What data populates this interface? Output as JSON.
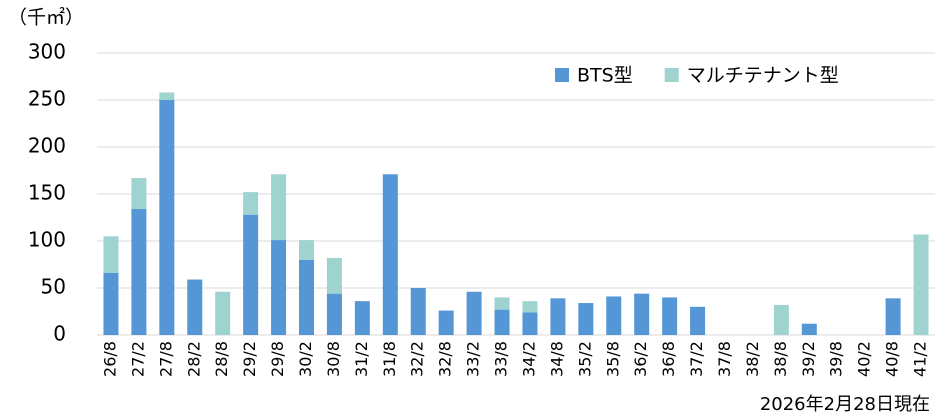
{
  "chart_data": {
    "type": "stacked_bar",
    "unit_label": "（千㎡）",
    "note": "2026年2月28日現在",
    "categories": [
      "26/8",
      "27/2",
      "27/8",
      "28/2",
      "28/8",
      "29/2",
      "29/8",
      "30/2",
      "30/8",
      "31/2",
      "31/8",
      "32/2",
      "32/8",
      "33/2",
      "33/8",
      "34/2",
      "34/8",
      "35/2",
      "35/8",
      "36/2",
      "36/8",
      "37/2",
      "37/8",
      "38/2",
      "38/8",
      "39/2",
      "39/8",
      "40/2",
      "40/8",
      "41/2"
    ],
    "series": [
      {
        "name": "BTS型",
        "color": "#5596d6",
        "values": [
          66,
          134,
          250,
          59,
          0,
          128,
          101,
          80,
          44,
          36,
          171,
          50,
          26,
          46,
          27,
          24,
          39,
          34,
          41,
          44,
          40,
          30,
          0,
          0,
          0,
          12,
          0,
          0,
          39,
          0
        ]
      },
      {
        "name": "マルチテナント型",
        "color": "#9fd3d0",
        "values": [
          39,
          33,
          8,
          0,
          46,
          24,
          70,
          21,
          38,
          0,
          0,
          0,
          0,
          0,
          13,
          12,
          0,
          0,
          0,
          0,
          0,
          0,
          0,
          0,
          32,
          0,
          0,
          0,
          0,
          107
        ]
      }
    ],
    "ylim": [
      0,
      300
    ],
    "yticks": [
      0,
      50,
      100,
      150,
      200,
      250,
      300
    ],
    "grid": true
  }
}
